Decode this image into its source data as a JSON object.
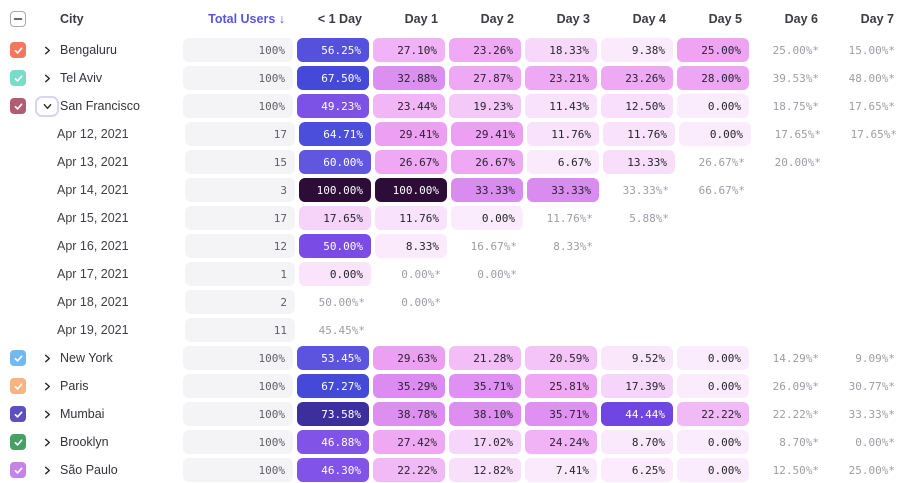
{
  "header": {
    "select_all_state": "indeterminate",
    "city_label": "City",
    "total_users_label": "Total Users ↓",
    "day_columns": [
      "< 1 Day",
      "Day 1",
      "Day 2",
      "Day 3",
      "Day 4",
      "Day 5",
      "Day 6",
      "Day 7"
    ]
  },
  "colors": {
    "accent_sort": "#5A55E0",
    "estimated_text": "#9D9DA8",
    "total_pill_bg": "#F4F4F6",
    "header_text": "#3B3B45"
  },
  "chart_data": {
    "type": "table",
    "title": "Retention by City",
    "columns": [
      "City",
      "Total Users",
      "< 1 Day",
      "Day 1",
      "Day 2",
      "Day 3",
      "Day 4",
      "Day 5",
      "Day 6",
      "Day 7"
    ]
  },
  "rows": [
    {
      "type": "city",
      "label": "Bengaluru",
      "checkbox": "#F4765C",
      "expanded": false,
      "total": "100%",
      "cells": [
        {
          "v": "56.25%",
          "bg": "#5551DC",
          "fg": "#FFFFFF"
        },
        {
          "v": "27.10%",
          "bg": "#F2B2F7"
        },
        {
          "v": "23.26%",
          "bg": "#EFA9F5"
        },
        {
          "v": "18.33%",
          "bg": "#F7D8FA"
        },
        {
          "v": "9.38%",
          "bg": "#FBE9FC"
        },
        {
          "v": "25.00%",
          "bg": "#EEA3F3"
        },
        {
          "v": "25.00%*"
        },
        {
          "v": "15.00%*"
        }
      ]
    },
    {
      "type": "city",
      "label": "Tel Aviv",
      "checkbox": "#7ADCC8",
      "expanded": false,
      "total": "100%",
      "cells": [
        {
          "v": "67.50%",
          "bg": "#4449D7",
          "fg": "#FFFFFF"
        },
        {
          "v": "32.88%",
          "bg": "#DC8FF0"
        },
        {
          "v": "27.87%",
          "bg": "#EFA9F4"
        },
        {
          "v": "23.21%",
          "bg": "#EFA9F4"
        },
        {
          "v": "23.26%",
          "bg": "#EFA9F4"
        },
        {
          "v": "28.00%",
          "bg": "#EEA5F3"
        },
        {
          "v": "39.53%*"
        },
        {
          "v": "48.00%*"
        }
      ]
    },
    {
      "type": "city",
      "label": "San Francisco",
      "checkbox": "#B25B72",
      "expanded": true,
      "total": "100%",
      "cells": [
        {
          "v": "49.23%",
          "bg": "#7B51E6",
          "fg": "#FFFFFF"
        },
        {
          "v": "23.44%",
          "bg": "#F2B6F7"
        },
        {
          "v": "19.23%",
          "bg": "#F4C9F8"
        },
        {
          "v": "11.43%",
          "bg": "#F9E2FB"
        },
        {
          "v": "12.50%",
          "bg": "#F8DFFB"
        },
        {
          "v": "0.00%",
          "bg": "#FBECFD"
        },
        {
          "v": "18.75%*"
        },
        {
          "v": "17.65%*"
        }
      ]
    },
    {
      "type": "date",
      "label": "Apr 12, 2021",
      "total": "17",
      "cells": [
        {
          "v": "64.71%",
          "bg": "#4A4EDA",
          "fg": "#FFFFFF"
        },
        {
          "v": "29.41%",
          "bg": "#EDA0F3"
        },
        {
          "v": "29.41%",
          "bg": "#EDA0F3"
        },
        {
          "v": "11.76%",
          "bg": "#F9E2FB"
        },
        {
          "v": "11.76%",
          "bg": "#F9E2FB"
        },
        {
          "v": "0.00%",
          "bg": "#FBECFD"
        },
        {
          "v": "17.65%*"
        },
        {
          "v": "17.65%*"
        }
      ]
    },
    {
      "type": "date",
      "label": "Apr 13, 2021",
      "total": "15",
      "cells": [
        {
          "v": "60.00%",
          "bg": "#6156E0",
          "fg": "#FFFFFF"
        },
        {
          "v": "26.67%",
          "bg": "#EFA9F4"
        },
        {
          "v": "26.67%",
          "bg": "#EFA9F4"
        },
        {
          "v": "6.67%",
          "bg": "#FBEAFC"
        },
        {
          "v": "13.33%",
          "bg": "#F8DEFB"
        },
        {
          "v": "26.67%*"
        },
        {
          "v": "20.00%*"
        },
        null
      ]
    },
    {
      "type": "date",
      "label": "Apr 14, 2021",
      "total": "3",
      "cells": [
        {
          "v": "100.00%",
          "bg": "#2D0D38",
          "fg": "#FFFFFF"
        },
        {
          "v": "100.00%",
          "bg": "#2D0D38",
          "fg": "#FFFFFF"
        },
        {
          "v": "33.33%",
          "bg": "#D98BEF"
        },
        {
          "v": "33.33%",
          "bg": "#D98BEF"
        },
        {
          "v": "33.33%*"
        },
        {
          "v": "66.67%*"
        },
        null,
        null
      ]
    },
    {
      "type": "date",
      "label": "Apr 15, 2021",
      "total": "17",
      "cells": [
        {
          "v": "17.65%",
          "bg": "#F6D4FA"
        },
        {
          "v": "11.76%",
          "bg": "#F9E2FB"
        },
        {
          "v": "0.00%",
          "bg": "#FBECFD"
        },
        {
          "v": "11.76%*"
        },
        {
          "v": "5.88%*"
        },
        null,
        null,
        null
      ]
    },
    {
      "type": "date",
      "label": "Apr 16, 2021",
      "total": "12",
      "cells": [
        {
          "v": "50.00%",
          "bg": "#7A4BE5",
          "fg": "#FFFFFF"
        },
        {
          "v": "8.33%",
          "bg": "#FBE9FC"
        },
        {
          "v": "16.67%*"
        },
        {
          "v": "8.33%*"
        },
        null,
        null,
        null,
        null
      ]
    },
    {
      "type": "date",
      "label": "Apr 17, 2021",
      "total": "1",
      "cells": [
        {
          "v": "0.00%",
          "bg": "#FAE4FB"
        },
        {
          "v": "0.00%*"
        },
        {
          "v": "0.00%*"
        },
        null,
        null,
        null,
        null,
        null
      ]
    },
    {
      "type": "date",
      "label": "Apr 18, 2021",
      "total": "2",
      "cells": [
        {
          "v": "50.00%*"
        },
        {
          "v": "0.00%*"
        },
        null,
        null,
        null,
        null,
        null,
        null
      ]
    },
    {
      "type": "date",
      "label": "Apr 19, 2021",
      "total": "11",
      "cells": [
        {
          "v": "45.45%*"
        },
        null,
        null,
        null,
        null,
        null,
        null,
        null
      ]
    },
    {
      "type": "city",
      "label": "New York",
      "checkbox": "#72B9F2",
      "expanded": false,
      "total": "100%",
      "cells": [
        {
          "v": "53.45%",
          "bg": "#5C54DE",
          "fg": "#FFFFFF"
        },
        {
          "v": "29.63%",
          "bg": "#EDA0F3"
        },
        {
          "v": "21.28%",
          "bg": "#F3BDF7"
        },
        {
          "v": "20.59%",
          "bg": "#F4C4F8"
        },
        {
          "v": "9.52%",
          "bg": "#FAE7FC"
        },
        {
          "v": "0.00%",
          "bg": "#FBECFD"
        },
        {
          "v": "14.29%*"
        },
        {
          "v": "9.09%*"
        }
      ]
    },
    {
      "type": "city",
      "label": "Paris",
      "checkbox": "#F7B380",
      "expanded": false,
      "total": "100%",
      "cells": [
        {
          "v": "67.27%",
          "bg": "#4449D7",
          "fg": "#FFFFFF"
        },
        {
          "v": "35.29%",
          "bg": "#DC8BF0"
        },
        {
          "v": "35.71%",
          "bg": "#E090F2"
        },
        {
          "v": "25.81%",
          "bg": "#EFA8F4"
        },
        {
          "v": "17.39%",
          "bg": "#F6D5FA"
        },
        {
          "v": "0.00%",
          "bg": "#FBECFD"
        },
        {
          "v": "26.09%*"
        },
        {
          "v": "30.77%*"
        }
      ]
    },
    {
      "type": "city",
      "label": "Mumbai",
      "checkbox": "#5C50BE",
      "expanded": false,
      "total": "100%",
      "cells": [
        {
          "v": "73.58%",
          "bg": "#3D2E9E",
          "fg": "#FFFFFF"
        },
        {
          "v": "38.78%",
          "bg": "#DE8DF1"
        },
        {
          "v": "38.10%",
          "bg": "#DE8DF1"
        },
        {
          "v": "35.71%",
          "bg": "#E090F2"
        },
        {
          "v": "44.44%",
          "bg": "#6F46E2",
          "fg": "#FFFFFF"
        },
        {
          "v": "22.22%",
          "bg": "#F2B9F7"
        },
        {
          "v": "22.22%*"
        },
        {
          "v": "33.33%*"
        }
      ]
    },
    {
      "type": "city",
      "label": "Brooklyn",
      "checkbox": "#46A165",
      "expanded": false,
      "total": "100%",
      "cells": [
        {
          "v": "46.88%",
          "bg": "#8153E7",
          "fg": "#FFFFFF"
        },
        {
          "v": "27.42%",
          "bg": "#EFA8F4"
        },
        {
          "v": "17.02%",
          "bg": "#F6D6FA"
        },
        {
          "v": "24.24%",
          "bg": "#F1B3F6"
        },
        {
          "v": "8.70%",
          "bg": "#FAE8FC"
        },
        {
          "v": "0.00%",
          "bg": "#FBECFD"
        },
        {
          "v": "8.70%*"
        },
        {
          "v": "0.00%*"
        }
      ]
    },
    {
      "type": "city",
      "label": "São Paulo",
      "checkbox": "#C583E8",
      "expanded": false,
      "total": "100%",
      "cells": [
        {
          "v": "46.30%",
          "bg": "#8153E7",
          "fg": "#FFFFFF"
        },
        {
          "v": "22.22%",
          "bg": "#F2B9F7"
        },
        {
          "v": "12.82%",
          "bg": "#F8E0FB"
        },
        {
          "v": "7.41%",
          "bg": "#FBEAFC"
        },
        {
          "v": "6.25%",
          "bg": "#FBEBFC"
        },
        {
          "v": "0.00%",
          "bg": "#FBECFD"
        },
        {
          "v": "12.50%*"
        },
        {
          "v": "25.00%*"
        }
      ]
    }
  ]
}
